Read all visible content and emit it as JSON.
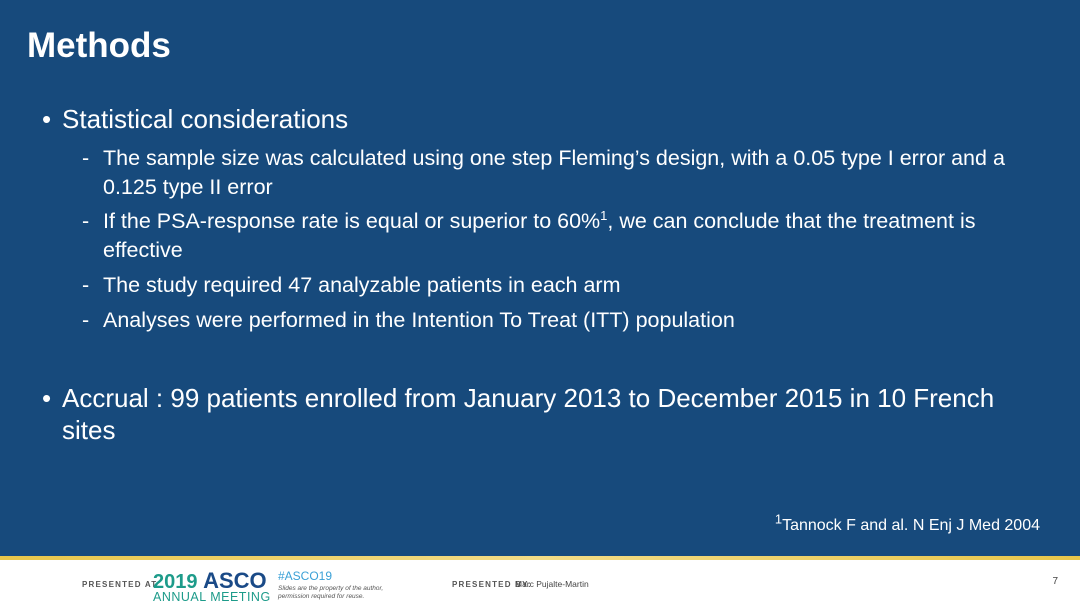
{
  "slide": {
    "title": "Methods",
    "bullets": [
      {
        "text": "Statistical considerations",
        "subitems": [
          {
            "text": "The sample size was calculated using one step Fleming’s design, with a 0.05 type I error and a 0.125 type II error"
          },
          {
            "text_before": "If the PSA-response rate is equal or superior to 60%",
            "sup": "1",
            "text_after": ", we can conclude that the treatment is effective"
          },
          {
            "text": "The study required 47 analyzable patients in each arm"
          },
          {
            "text": "Analyses were performed in the Intention To Treat (ITT) population"
          }
        ]
      },
      {
        "text": "Accrual : 99 patients enrolled from January 2013 to December 2015 in 10 French sites"
      }
    ],
    "reference": {
      "sup": "1",
      "text": "Tannock F and al. N Enj J Med 2004"
    },
    "bullet_glyph": "•",
    "dash_glyph": "-"
  },
  "footer": {
    "presented_at": "PRESENTED AT:",
    "asco_year": "2019",
    "asco_name": "ASCO",
    "asco_meeting": "ANNUAL MEETING",
    "hashtag": "#ASCO19",
    "note_line1": "Slides are the property of the author,",
    "note_line2": "permission required for reuse.",
    "presented_by": "PRESENTED BY:",
    "presenter": "Marc Pujalte-Martin",
    "page_number": "7"
  },
  "colors": {
    "background": "#174a7c",
    "accent_line": "#e8c64a",
    "asco_teal": "#1d9b8a",
    "asco_blue": "#1a4a87"
  }
}
